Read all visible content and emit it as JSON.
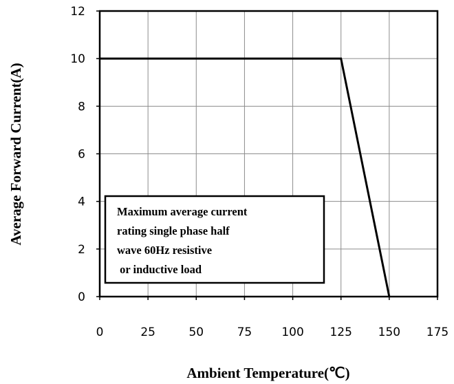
{
  "chart_data": {
    "type": "line",
    "title": "",
    "xlabel": "Ambient Temperature(℃)",
    "ylabel": "Average Forward Current(A)",
    "xlim": [
      0,
      175
    ],
    "ylim": [
      0,
      12
    ],
    "x_ticks": [
      "0",
      "25",
      "50",
      "75",
      "100",
      "125",
      "150",
      "175"
    ],
    "y_ticks": [
      "0",
      "2",
      "4",
      "6",
      "8",
      "10",
      "12"
    ],
    "grid": true,
    "series": [
      {
        "x": [
          0,
          125,
          150
        ],
        "y": [
          10,
          10,
          0
        ],
        "color": "#000000"
      }
    ],
    "annotation": {
      "lines": [
        "Maximum average current",
        "rating single phase half",
        "wave 60Hz resistive",
        " or inductive load"
      ]
    }
  }
}
